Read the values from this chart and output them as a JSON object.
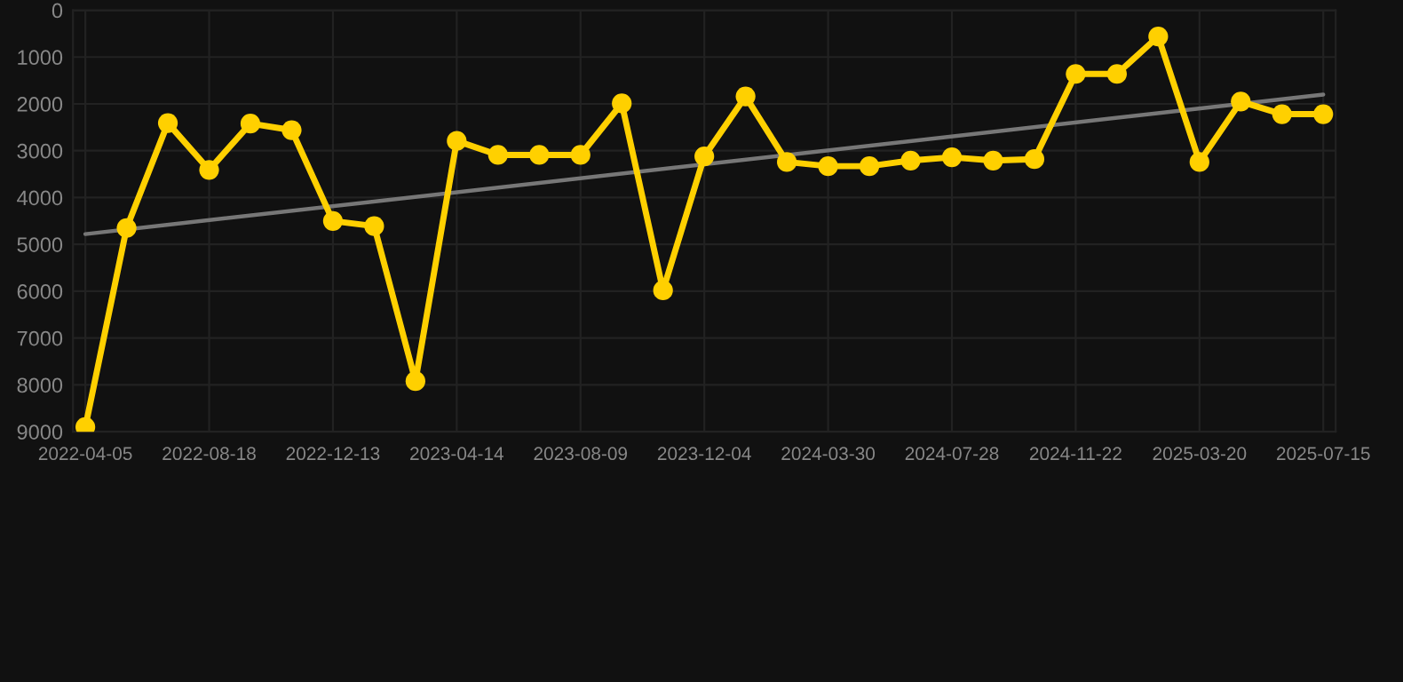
{
  "chart_data": {
    "type": "line",
    "categories": [
      "2022-04-05",
      null,
      null,
      "2022-08-18",
      null,
      null,
      "2022-12-13",
      null,
      null,
      "2023-04-14",
      null,
      null,
      "2023-08-09",
      null,
      null,
      "2023-12-04",
      null,
      null,
      "2024-03-30",
      null,
      null,
      "2024-07-28",
      null,
      null,
      "2024-11-22",
      null,
      null,
      "2025-03-20",
      null,
      null,
      "2025-07-15"
    ],
    "series": [
      {
        "color": "#ffd000",
        "marker": "circle",
        "values": [
          8900,
          4650,
          2410,
          3410,
          2420,
          2560,
          4500,
          4610,
          7920,
          2790,
          3090,
          3090,
          3090,
          1990,
          5980,
          3120,
          1840,
          3240,
          3330,
          3330,
          3210,
          3140,
          3210,
          3180,
          1360,
          1360,
          560,
          3240,
          1950,
          2220,
          2220
        ]
      },
      {
        "type": "line",
        "color": "#777777",
        "marker": "none",
        "values": [
          4780,
          null,
          null,
          null,
          null,
          null,
          null,
          null,
          null,
          null,
          null,
          null,
          null,
          null,
          null,
          null,
          null,
          null,
          null,
          null,
          null,
          null,
          null,
          null,
          null,
          null,
          null,
          null,
          null,
          null,
          1800
        ]
      }
    ],
    "ylim": [
      9000,
      0
    ],
    "yticks": [
      0,
      1000,
      2000,
      3000,
      4000,
      5000,
      6000,
      7000,
      8000,
      9000
    ],
    "grid": true,
    "line_style": "solid"
  }
}
